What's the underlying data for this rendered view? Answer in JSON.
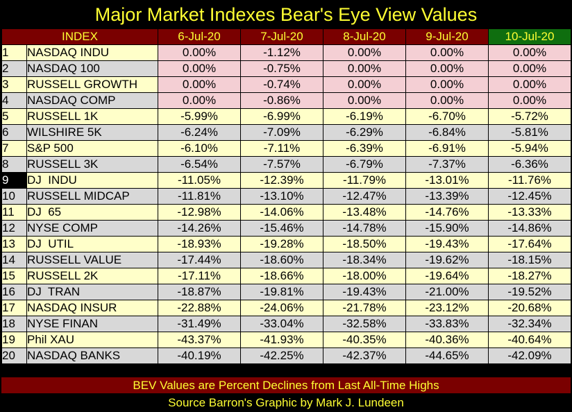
{
  "title": "Major Market Indexes Bear's Eye View Values",
  "header": {
    "index_label": "INDEX",
    "dates": [
      "6-Jul-20",
      "7-Jul-20",
      "8-Jul-20",
      "9-Jul-20",
      "10-Jul-20"
    ]
  },
  "rows": [
    {
      "num": "1",
      "name": "NASDAQ INDU",
      "values": [
        "0.00%",
        "-1.12%",
        "0.00%",
        "0.00%",
        "0.00%"
      ]
    },
    {
      "num": "2",
      "name": "NASDAQ 100",
      "values": [
        "0.00%",
        "-0.75%",
        "0.00%",
        "0.00%",
        "0.00%"
      ]
    },
    {
      "num": "3",
      "name": "RUSSELL GROWTH",
      "values": [
        "0.00%",
        "-0.74%",
        "0.00%",
        "0.00%",
        "0.00%"
      ]
    },
    {
      "num": "4",
      "name": "NASDAQ COMP",
      "values": [
        "0.00%",
        "-0.86%",
        "0.00%",
        "0.00%",
        "0.00%"
      ]
    },
    {
      "num": "5",
      "name": "RUSSELL 1K",
      "values": [
        "-5.99%",
        "-6.99%",
        "-6.19%",
        "-6.70%",
        "-5.72%"
      ]
    },
    {
      "num": "6",
      "name": "WILSHIRE 5K",
      "values": [
        "-6.24%",
        "-7.09%",
        "-6.29%",
        "-6.84%",
        "-5.81%"
      ]
    },
    {
      "num": "7",
      "name": "S&P 500",
      "values": [
        "-6.10%",
        "-7.11%",
        "-6.39%",
        "-6.91%",
        "-5.94%"
      ]
    },
    {
      "num": "8",
      "name": "RUSSELL 3K",
      "values": [
        "-6.54%",
        "-7.57%",
        "-6.79%",
        "-7.37%",
        "-6.36%"
      ]
    },
    {
      "num": "9",
      "name": "DJ  INDU",
      "values": [
        "-11.05%",
        "-12.39%",
        "-11.79%",
        "-13.01%",
        "-11.76%"
      ]
    },
    {
      "num": "10",
      "name": "RUSSELL MIDCAP",
      "values": [
        "-11.81%",
        "-13.10%",
        "-12.47%",
        "-13.39%",
        "-12.45%"
      ]
    },
    {
      "num": "11",
      "name": "DJ  65",
      "values": [
        "-12.98%",
        "-14.06%",
        "-13.48%",
        "-14.76%",
        "-13.33%"
      ]
    },
    {
      "num": "12",
      "name": "NYSE COMP",
      "values": [
        "-14.26%",
        "-15.46%",
        "-14.78%",
        "-15.90%",
        "-14.86%"
      ]
    },
    {
      "num": "13",
      "name": "DJ  UTIL",
      "values": [
        "-18.93%",
        "-19.28%",
        "-18.50%",
        "-19.43%",
        "-17.64%"
      ]
    },
    {
      "num": "14",
      "name": "RUSSELL VALUE",
      "values": [
        "-17.44%",
        "-18.60%",
        "-18.34%",
        "-19.62%",
        "-18.15%"
      ]
    },
    {
      "num": "15",
      "name": "RUSSELL 2K",
      "values": [
        "-17.11%",
        "-18.66%",
        "-18.00%",
        "-19.64%",
        "-18.27%"
      ]
    },
    {
      "num": "16",
      "name": "DJ  TRAN",
      "values": [
        "-18.87%",
        "-19.81%",
        "-19.43%",
        "-21.00%",
        "-19.52%"
      ]
    },
    {
      "num": "17",
      "name": "NASDAQ INSUR",
      "values": [
        "-22.88%",
        "-24.06%",
        "-21.78%",
        "-23.12%",
        "-20.68%"
      ]
    },
    {
      "num": "18",
      "name": "NYSE FINAN",
      "values": [
        "-31.49%",
        "-33.04%",
        "-32.58%",
        "-33.83%",
        "-32.34%"
      ]
    },
    {
      "num": "19",
      "name": "Phil XAU",
      "values": [
        "-43.37%",
        "-41.93%",
        "-40.35%",
        "-40.36%",
        "-40.64%"
      ]
    },
    {
      "num": "20",
      "name": "NASDAQ BANKS",
      "values": [
        "-40.19%",
        "-42.25%",
        "-42.37%",
        "-44.65%",
        "-42.09%"
      ]
    }
  ],
  "footer": {
    "note": "BEV Values are Percent Declines from Last All-Time Highs",
    "credit": "Source Barron's   Graphic by Mark J. Lundeen"
  },
  "colors": {
    "title_text": "#ffff33",
    "header_bg": "#7a0000",
    "last_date_header_bg": "#0f6e0f",
    "row_odd_bg": "#ffffc9",
    "row_even_bg": "#d8d8d8",
    "zero_cell_bg": "#f4cfd4",
    "highlight_num_bg": "#000000"
  }
}
